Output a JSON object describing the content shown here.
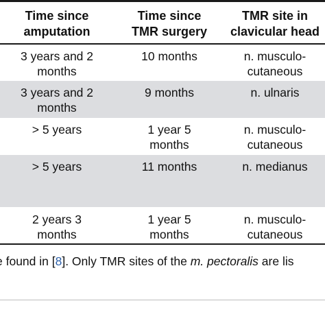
{
  "table": {
    "headers": [
      {
        "line1": "Time since",
        "line2": "amputation"
      },
      {
        "line1": "Time since",
        "line2": "TMR surgery"
      },
      {
        "line1": "TMR site in",
        "line2": "clavicular head"
      }
    ],
    "rows": [
      {
        "c1": [
          "3 years and 2",
          "months"
        ],
        "c2": [
          "10 months"
        ],
        "c3": [
          "n. musculo-",
          "cutaneous"
        ],
        "shaded": false
      },
      {
        "c1": [
          "3 years and 2",
          "months"
        ],
        "c2": [
          "9 months"
        ],
        "c3": [
          "n. ulnaris"
        ],
        "shaded": true
      },
      {
        "c1": [
          "> 5 years"
        ],
        "c2": [
          "1 year 5",
          "months"
        ],
        "c3": [
          "n. musculo-",
          "cutaneous"
        ],
        "shaded": false
      },
      {
        "c1": [
          "> 5 years"
        ],
        "c2": [
          "11 months"
        ],
        "c3": [
          "n. medianus"
        ],
        "shaded": true
      },
      {
        "c1": [
          "2 years 3",
          "months"
        ],
        "c2": [
          "1 year 5",
          "months"
        ],
        "c3": [
          "n. musculo-",
          "cutaneous"
        ],
        "shaded": false
      }
    ]
  },
  "footnote": {
    "pre": "e found in [",
    "ref": "8",
    "mid": "]. Only TMR sites of the ",
    "italic": "m. pectoralis",
    "post": " are lis"
  },
  "colors": {
    "rule": "#1a1a1a",
    "shade": "#dcdde0",
    "link": "#2a5ea8"
  }
}
